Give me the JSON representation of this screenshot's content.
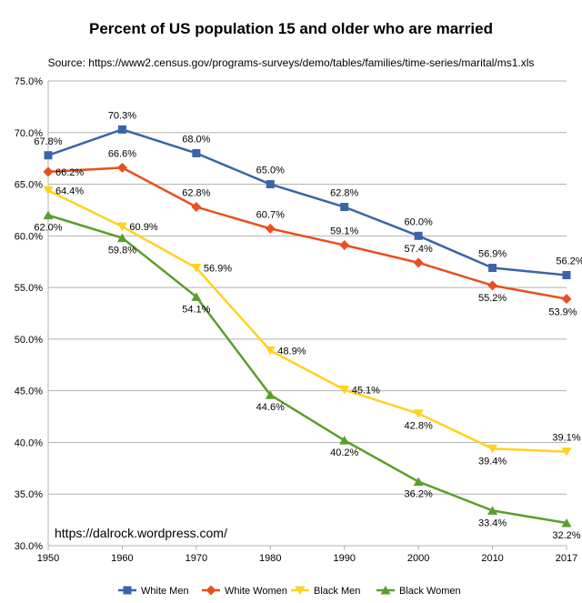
{
  "chart_data": {
    "type": "line",
    "title": "Percent of US population 15 and older who are married",
    "subtitle": "Source:  https://www2.census.gov/programs-surveys/demo/tables/families/time-series/marital/ms1.xls",
    "annotation": "https://dalrock.wordpress.com/",
    "x": [
      1950,
      1960,
      1970,
      1980,
      1990,
      2000,
      2010,
      2017
    ],
    "x_tick_labels": [
      "1950",
      "1960",
      "1970",
      "1980",
      "1990",
      "2000",
      "2010",
      "2017"
    ],
    "ylim": [
      30,
      75
    ],
    "y_ticks": [
      30,
      35,
      40,
      45,
      50,
      55,
      60,
      65,
      70,
      75
    ],
    "y_tick_labels": [
      "30.0%",
      "35.0%",
      "40.0%",
      "45.0%",
      "50.0%",
      "55.0%",
      "60.0%",
      "65.0%",
      "70.0%",
      "75.0%"
    ],
    "grid": true,
    "legend_position": "bottom",
    "series": [
      {
        "name": "White Men",
        "color": "#3b64a8",
        "marker": "square",
        "values": [
          67.8,
          70.3,
          68.0,
          65.0,
          62.8,
          60.0,
          56.9,
          56.2
        ],
        "labels": [
          "67.8%",
          "70.3%",
          "68.0%",
          "65.0%",
          "62.8%",
          "60.0%",
          "56.9%",
          "56.2%"
        ]
      },
      {
        "name": "White Women",
        "color": "#e8501e",
        "marker": "diamond",
        "values": [
          66.2,
          66.6,
          62.8,
          60.7,
          59.1,
          57.4,
          55.2,
          53.9
        ],
        "labels": [
          "66.2%",
          "66.6%",
          "62.8%",
          "60.7%",
          "59.1%",
          "57.4%",
          "55.2%",
          "53.9%"
        ]
      },
      {
        "name": "Black Men",
        "color": "#ffd21f",
        "marker": "triangle-down",
        "values": [
          64.4,
          60.9,
          56.9,
          48.9,
          45.1,
          42.8,
          39.4,
          39.1
        ],
        "labels": [
          "64.4%",
          "60.9%",
          "56.9%",
          "48.9%",
          "45.1%",
          "42.8%",
          "39.4%",
          "39.1%"
        ]
      },
      {
        "name": "Black Women",
        "color": "#5a9e2b",
        "marker": "triangle-up",
        "values": [
          62.0,
          59.8,
          54.1,
          44.6,
          40.2,
          36.2,
          33.4,
          32.2
        ],
        "labels": [
          "62.0%",
          "59.8%",
          "54.1%",
          "44.6%",
          "40.2%",
          "36.2%",
          "33.4%",
          "32.2%"
        ]
      }
    ]
  }
}
